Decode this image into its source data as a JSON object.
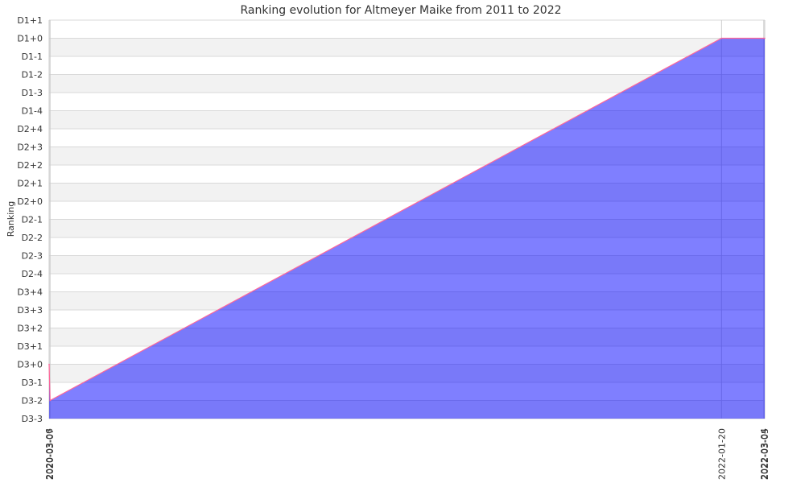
{
  "chart_data": {
    "type": "area",
    "title": "Ranking evolution for Altmeyer Maike from 2011 to 2022",
    "xlabel": "",
    "ylabel": "Ranking",
    "y_categories": [
      "D3-3",
      "D3-2",
      "D3-1",
      "D3+0",
      "D3+1",
      "D3+2",
      "D3+3",
      "D3+4",
      "D2-4",
      "D2-3",
      "D2-2",
      "D2-1",
      "D2+0",
      "D2+1",
      "D2+2",
      "D2+3",
      "D2+4",
      "D1-4",
      "D1-3",
      "D1-2",
      "D1-1",
      "D1+0",
      "D1+1"
    ],
    "x": [
      "2020-03-06",
      "2020-03-07",
      "2022-01-20",
      "2022-03-04",
      "2022-03-05"
    ],
    "series": [
      {
        "values": [
          "D3+0",
          "D3-2",
          "D1+0",
          "D1+0",
          "D1+0"
        ]
      }
    ],
    "grid": true
  },
  "colors": {
    "fill": "#0000ff",
    "line": "#ff6699",
    "band_shaded": "#f2f2f2",
    "grid": "#d9d9d9"
  }
}
